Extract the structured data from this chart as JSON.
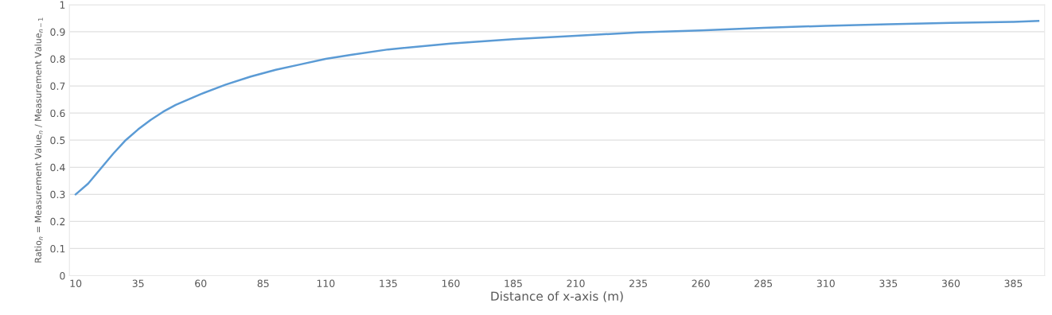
{
  "chart_data": {
    "type": "line",
    "xlabel": "Distance of x-axis (m)",
    "ylabel": "Ratio$_{n}$ = Measurement Value$_{n}$ / Measurement Value$_{n−1}$",
    "x": [
      10,
      15,
      20,
      25,
      30,
      35,
      40,
      45,
      50,
      55,
      60,
      70,
      80,
      90,
      100,
      110,
      120,
      135,
      160,
      185,
      210,
      235,
      260,
      285,
      310,
      335,
      360,
      385,
      395
    ],
    "series": [
      {
        "color": "#5b9bd5",
        "values": [
          0.3,
          0.34,
          0.395,
          0.45,
          0.5,
          0.54,
          0.575,
          0.605,
          0.63,
          0.65,
          0.67,
          0.705,
          0.735,
          0.76,
          0.78,
          0.8,
          0.815,
          0.835,
          0.857,
          0.873,
          0.885,
          0.898,
          0.905,
          0.915,
          0.922,
          0.928,
          0.933,
          0.937,
          0.94
        ]
      }
    ],
    "xlim": [
      7.5,
      397.5
    ],
    "xticks": [
      10,
      35,
      60,
      85,
      110,
      135,
      160,
      185,
      210,
      235,
      260,
      285,
      310,
      335,
      360,
      385
    ],
    "ylim": [
      0,
      1
    ],
    "yticks": [
      0,
      0.1,
      0.2,
      0.3,
      0.4,
      0.5,
      0.6,
      0.7,
      0.8,
      0.9,
      1
    ],
    "grid": "y",
    "marker": "none",
    "line_style": "solid"
  }
}
